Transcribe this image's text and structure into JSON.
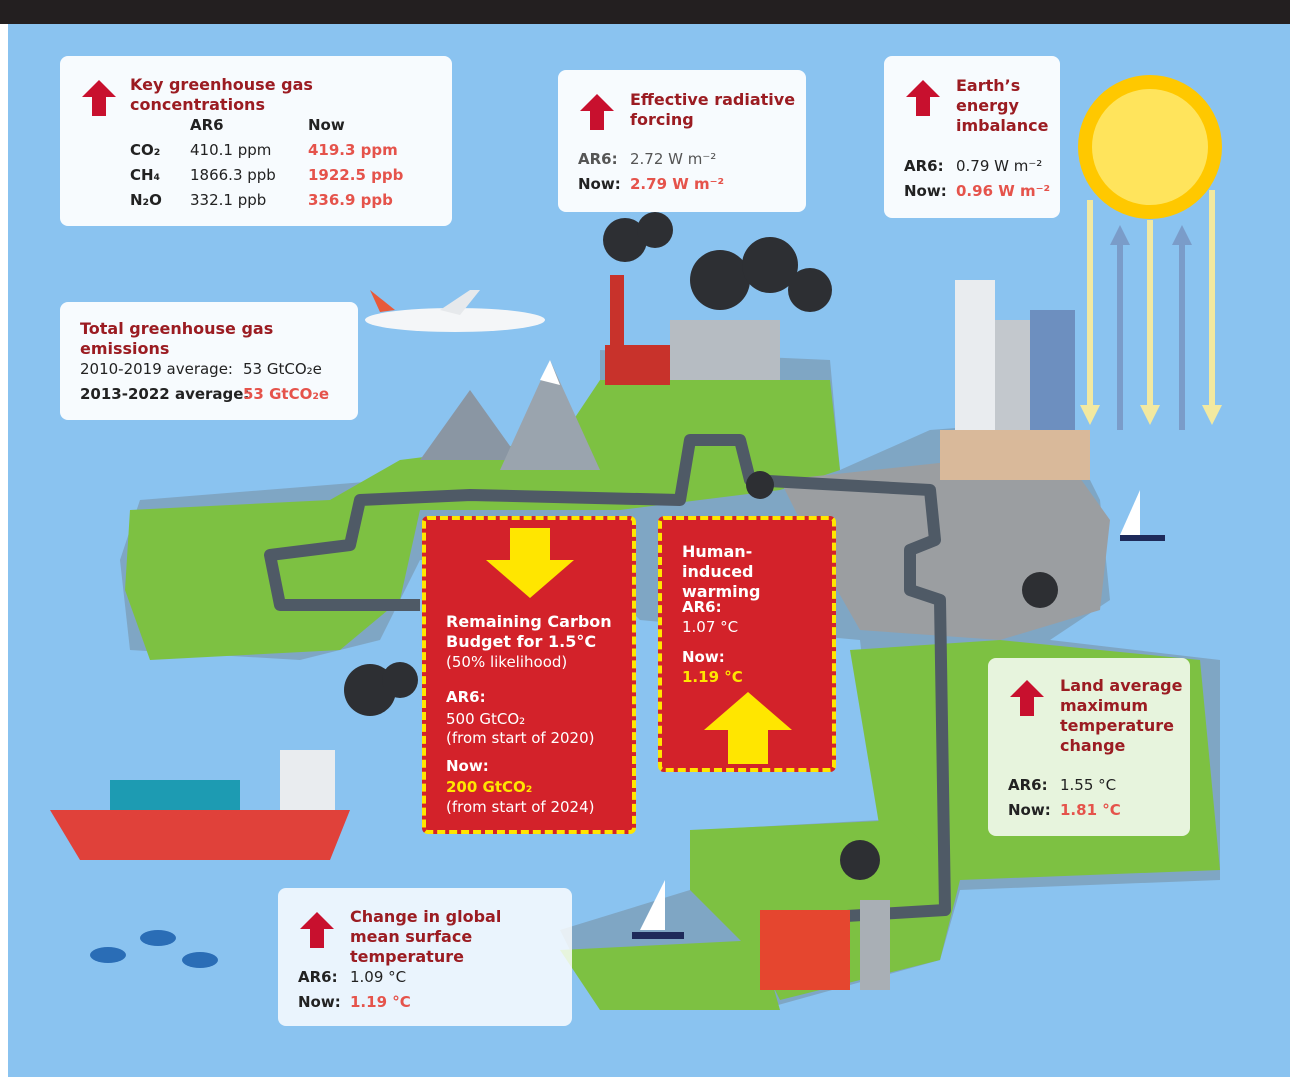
{
  "concentrations": {
    "title": "Key greenhouse gas concentrations",
    "headers": [
      "AR6",
      "Now"
    ],
    "rows": [
      [
        "CO₂",
        "410.1 ppm",
        "419.3 ppm"
      ],
      [
        "CH₄",
        "1866.3 ppb",
        "1922.5 ppb"
      ],
      [
        "N₂O",
        "332.1 ppb",
        "336.9 ppb"
      ]
    ]
  },
  "forcing": {
    "title": "Effective radiative forcing",
    "ar6_label": "AR6:",
    "ar6": "2.72 W m⁻²",
    "now_label": "Now:",
    "now": "2.79 W m⁻²"
  },
  "imbalance": {
    "title": "Earth’s energy imbalance",
    "ar6_label": "AR6:",
    "ar6": "0.79 W m⁻²",
    "now_label": "Now:",
    "now": "0.96 W m⁻²"
  },
  "emissions": {
    "title": "Total greenhouse gas emissions",
    "rows": [
      [
        "2010-2019 average:",
        "53 GtCO₂e"
      ],
      [
        "2013-2022 average:",
        "53 GtCO₂e"
      ]
    ]
  },
  "carbon_budget": {
    "title": "Remaining Carbon Budget for 1.5°C",
    "note": "(50% likelihood)",
    "ar6_label": "AR6:",
    "ar6": "500 GtCO₂",
    "ar6_note": "(from start of 2020)",
    "now_label": "Now:",
    "now": "200 GtCO₂",
    "now_note": "(from start of 2024)"
  },
  "warming": {
    "title": "Human-induced warming",
    "ar6_label": "AR6:",
    "ar6": "1.07 °C",
    "now_label": "Now:",
    "now": "1.19 °C"
  },
  "land": {
    "title": "Land average maximum temperature change",
    "ar6_label": "AR6:",
    "ar6": "1.55 °C",
    "now_label": "Now:",
    "now": "1.81 °C"
  },
  "gmst": {
    "title": "Change in global mean surface temperature",
    "ar6_label": "AR6:",
    "ar6": "1.09 °C",
    "now_label": "Now:",
    "now": "1.19 °C"
  }
}
